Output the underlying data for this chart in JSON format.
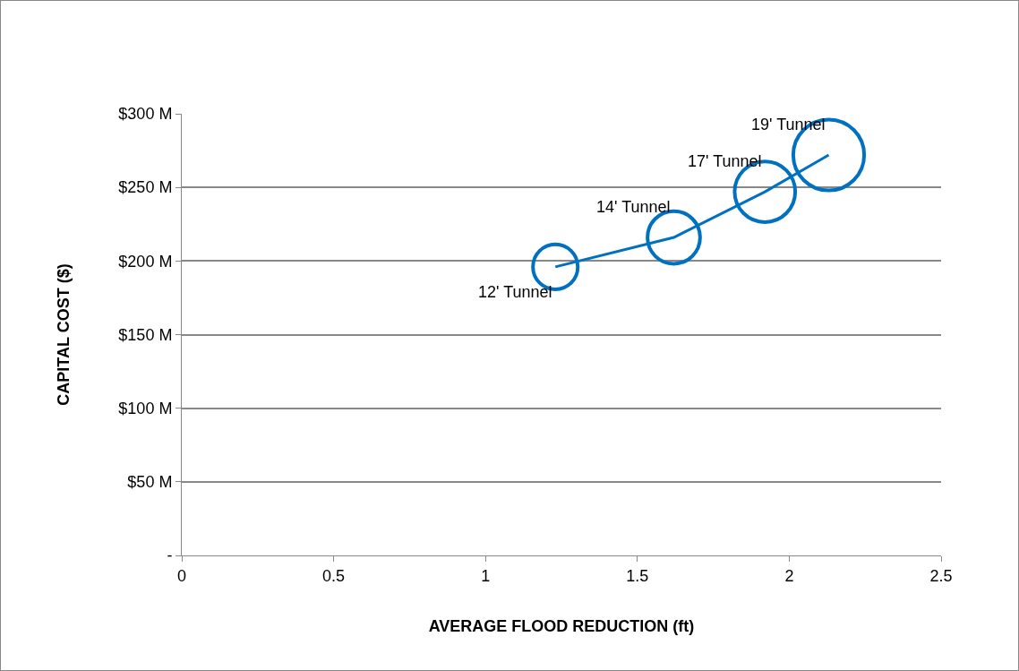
{
  "chart_data": {
    "type": "bubble",
    "xlabel": "AVERAGE FLOOD REDUCTION (ft)",
    "ylabel": "CAPITAL COST ($)",
    "x": [
      1.23,
      1.62,
      1.92,
      2.13
    ],
    "series": [
      {
        "color": "#0070c0",
        "values": [
          196,
          216,
          247,
          272
        ],
        "sizes": [
          0.4,
          0.55,
          0.73,
          1
        ]
      },
      {
        "type": "line",
        "color": "#0070c0",
        "values": [
          196,
          216,
          247,
          272
        ]
      }
    ],
    "annotations": [
      {
        "text": "12' Tunnel",
        "x": 1.23,
        "y": 196
      },
      {
        "text": "14' Tunnel",
        "x": 1.62,
        "y": 216
      },
      {
        "text": "17' Tunnel",
        "x": 1.92,
        "y": 247
      },
      {
        "text": "19' Tunnel",
        "x": 2.13,
        "y": 272
      }
    ],
    "xlim": [
      0,
      2.5
    ],
    "xticks": [
      0,
      0.5,
      1,
      1.5,
      2,
      2.5
    ],
    "ylim": [
      0,
      300
    ],
    "yticks": [
      {
        "value": 0,
        "label": "-"
      },
      {
        "value": 50,
        "label": "$50 M"
      },
      {
        "value": 100,
        "label": "$100 M"
      },
      {
        "value": 150,
        "label": "$150 M"
      },
      {
        "value": 200,
        "label": "$200 M"
      },
      {
        "value": 250,
        "label": "$250 M"
      },
      {
        "value": 300,
        "label": "$300 M"
      }
    ],
    "grid": "y",
    "line_style": "solid"
  }
}
